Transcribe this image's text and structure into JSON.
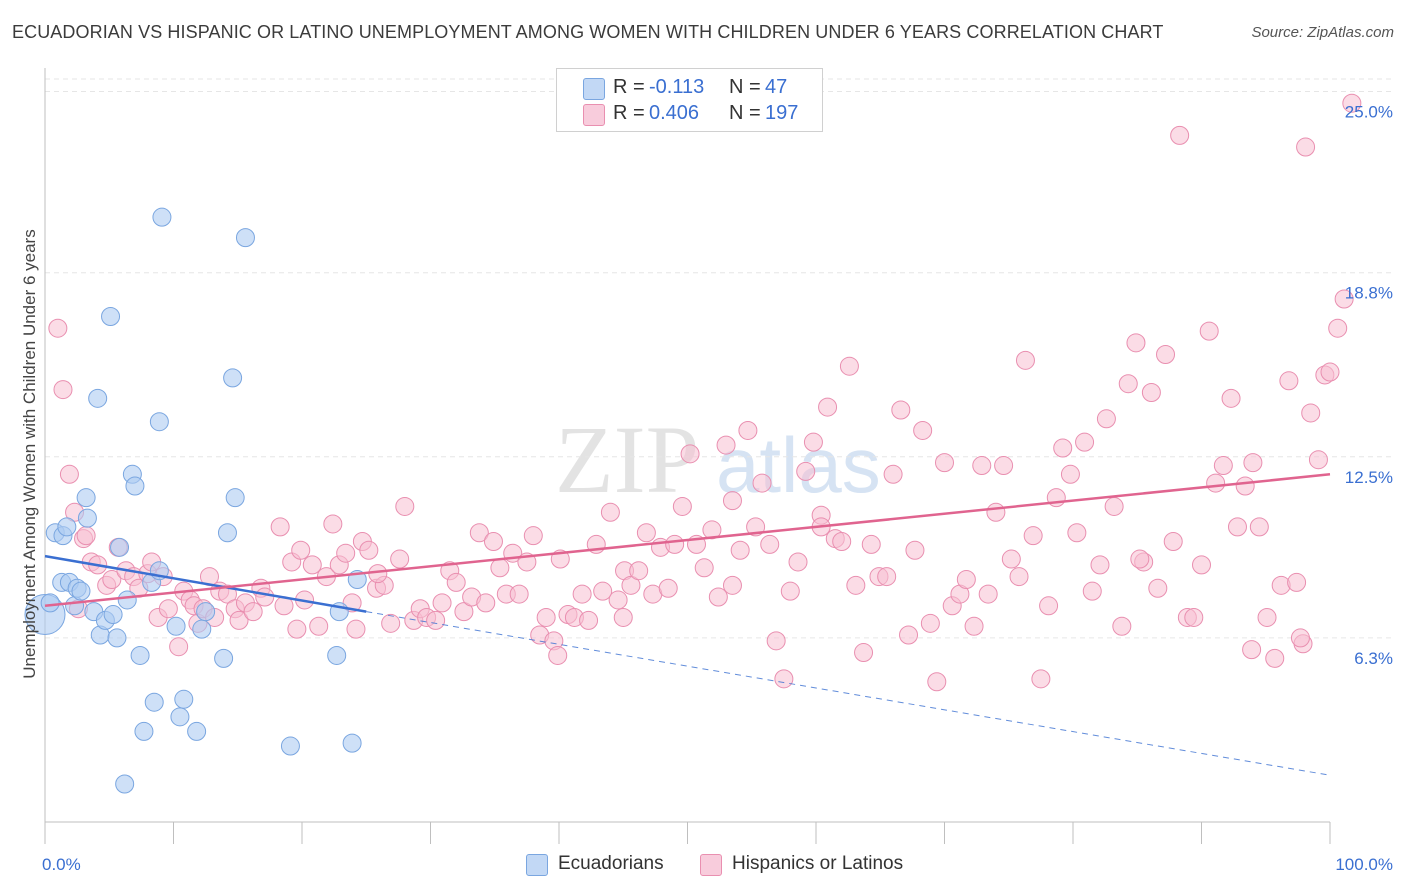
{
  "header": {
    "title": "ECUADORIAN VS HISPANIC OR LATINO UNEMPLOYMENT AMONG WOMEN WITH CHILDREN UNDER 6 YEARS CORRELATION CHART",
    "source": "Source: ZipAtlas.com"
  },
  "watermark": {
    "zip": "ZIP",
    "atlas": "atlas"
  },
  "legend": {
    "rows": [
      {
        "r_label": "R =",
        "r_value": "-0.113",
        "n_label": "N =",
        "n_value": "47"
      },
      {
        "r_label": "R =",
        "r_value": "0.406",
        "n_label": "N =",
        "n_value": "197"
      }
    ]
  },
  "bottom_legend": {
    "ecuadorians": "Ecuadorians",
    "hispanics": "Hispanics or Latinos"
  },
  "colors": {
    "ecuadorian_fill": "#aecbf2",
    "ecuadorian_stroke": "#7aa6e0",
    "ecuadorian_line": "#3a6fd1",
    "hispanic_fill": "#f7bfd2",
    "hispanic_stroke": "#e98fb0",
    "hispanic_line": "#e0648f",
    "tick_label": "#3a6fd1"
  },
  "chart_data": {
    "type": "scatter",
    "title": "ECUADORIAN VS HISPANIC OR LATINO UNEMPLOYMENT AMONG WOMEN WITH CHILDREN UNDER 6 YEARS CORRELATION CHART",
    "xlabel": "",
    "ylabel": "Unemployment Among Women with Children Under 6 years",
    "xlim": [
      0,
      100
    ],
    "ylim": [
      0,
      25.6
    ],
    "x_tick_labels": [
      "0.0%",
      "100.0%"
    ],
    "y_ticks": [
      6.3,
      12.5,
      18.8,
      25.0
    ],
    "y_tick_labels": [
      "6.3%",
      "12.5%",
      "18.8%",
      "25.0%"
    ],
    "grid": true,
    "legend_position": "top-center",
    "series": [
      {
        "name": "Ecuadorians",
        "r": -0.113,
        "n": 47,
        "trend": {
          "x": [
            0,
            25
          ],
          "y": [
            9.1,
            7.2
          ]
        },
        "trend_extended": {
          "x": [
            25,
            100
          ],
          "y": [
            7.2,
            1.6
          ]
        },
        "points": [
          [
            0.0,
            7.1,
            2
          ],
          [
            0.4,
            7.5,
            1
          ],
          [
            0.8,
            9.9,
            1
          ],
          [
            1.3,
            8.2,
            1
          ],
          [
            1.4,
            9.8,
            1
          ],
          [
            1.7,
            10.1,
            1
          ],
          [
            1.9,
            8.2,
            1
          ],
          [
            2.3,
            7.4,
            1
          ],
          [
            2.5,
            8.0,
            1
          ],
          [
            2.8,
            7.9,
            1
          ],
          [
            3.3,
            10.4,
            1
          ],
          [
            3.2,
            11.1,
            1
          ],
          [
            3.8,
            7.2,
            1
          ],
          [
            4.1,
            14.5,
            1
          ],
          [
            4.3,
            6.4,
            1
          ],
          [
            4.7,
            6.9,
            1
          ],
          [
            5.1,
            17.3,
            1
          ],
          [
            5.3,
            7.1,
            1
          ],
          [
            5.6,
            6.3,
            1
          ],
          [
            5.8,
            9.4,
            1
          ],
          [
            6.2,
            1.3,
            1
          ],
          [
            6.4,
            7.6,
            1
          ],
          [
            6.8,
            11.9,
            1
          ],
          [
            7.0,
            11.5,
            1
          ],
          [
            7.4,
            5.7,
            1
          ],
          [
            7.7,
            3.1,
            1
          ],
          [
            8.3,
            8.2,
            1
          ],
          [
            8.5,
            4.1,
            1
          ],
          [
            8.9,
            8.6,
            1
          ],
          [
            8.9,
            13.7,
            1
          ],
          [
            9.1,
            20.7,
            1
          ],
          [
            10.2,
            6.7,
            1
          ],
          [
            10.5,
            3.6,
            1
          ],
          [
            10.8,
            4.2,
            1
          ],
          [
            11.8,
            3.1,
            1
          ],
          [
            12.2,
            6.6,
            1
          ],
          [
            12.5,
            7.2,
            1
          ],
          [
            13.9,
            5.6,
            1
          ],
          [
            14.2,
            9.9,
            1
          ],
          [
            14.6,
            15.2,
            1
          ],
          [
            14.8,
            11.1,
            1
          ],
          [
            15.6,
            20.0,
            1
          ],
          [
            19.1,
            2.6,
            1
          ],
          [
            22.7,
            5.7,
            1
          ],
          [
            22.9,
            7.2,
            1
          ],
          [
            23.9,
            2.7,
            1
          ],
          [
            24.3,
            8.3,
            1
          ]
        ]
      },
      {
        "name": "Hispanics or Latinos",
        "r": 0.406,
        "n": 197,
        "trend": {
          "x": [
            0,
            100
          ],
          "y": [
            7.4,
            11.9
          ]
        },
        "points": [
          [
            1.0,
            16.9
          ],
          [
            1.4,
            14.8
          ],
          [
            1.9,
            11.9
          ],
          [
            2.3,
            10.6
          ],
          [
            2.6,
            7.3
          ],
          [
            3.0,
            9.7
          ],
          [
            3.2,
            9.8
          ],
          [
            3.6,
            8.9
          ],
          [
            4.1,
            8.8
          ],
          [
            4.8,
            8.1
          ],
          [
            5.2,
            8.3
          ],
          [
            5.7,
            9.4
          ],
          [
            6.3,
            8.6
          ],
          [
            6.9,
            8.4
          ],
          [
            7.3,
            8.0
          ],
          [
            8.0,
            8.5
          ],
          [
            8.3,
            8.9
          ],
          [
            8.8,
            7.0
          ],
          [
            9.2,
            8.4
          ],
          [
            9.6,
            7.3
          ],
          [
            10.4,
            6.0
          ],
          [
            10.8,
            7.9
          ],
          [
            11.3,
            7.6
          ],
          [
            11.6,
            7.4
          ],
          [
            11.9,
            6.8
          ],
          [
            12.3,
            7.3
          ],
          [
            12.8,
            8.4
          ],
          [
            13.2,
            7.0
          ],
          [
            13.6,
            7.9
          ],
          [
            14.2,
            7.8
          ],
          [
            14.8,
            7.3
          ],
          [
            15.1,
            6.9
          ],
          [
            15.6,
            7.5
          ],
          [
            16.2,
            7.2
          ],
          [
            16.8,
            8.0
          ],
          [
            17.1,
            7.7
          ],
          [
            18.3,
            10.1
          ],
          [
            18.6,
            7.4
          ],
          [
            19.2,
            8.9
          ],
          [
            19.6,
            6.6
          ],
          [
            20.2,
            7.6
          ],
          [
            20.8,
            8.8
          ],
          [
            21.3,
            6.7
          ],
          [
            21.9,
            8.4
          ],
          [
            22.4,
            10.2
          ],
          [
            22.9,
            8.8
          ],
          [
            23.4,
            9.2
          ],
          [
            23.9,
            7.5
          ],
          [
            24.2,
            6.6
          ],
          [
            24.7,
            9.6
          ],
          [
            25.2,
            9.3
          ],
          [
            25.8,
            8.0
          ],
          [
            26.4,
            8.1
          ],
          [
            26.9,
            6.8
          ],
          [
            27.6,
            9.0
          ],
          [
            28.0,
            10.8
          ],
          [
            28.7,
            6.9
          ],
          [
            29.2,
            7.3
          ],
          [
            29.7,
            7.0
          ],
          [
            30.4,
            6.9
          ],
          [
            30.9,
            7.5
          ],
          [
            31.5,
            8.6
          ],
          [
            32.0,
            8.2
          ],
          [
            32.6,
            7.2
          ],
          [
            33.2,
            7.7
          ],
          [
            33.8,
            9.9
          ],
          [
            34.3,
            7.5
          ],
          [
            34.9,
            9.6
          ],
          [
            35.4,
            8.7
          ],
          [
            35.9,
            7.8
          ],
          [
            36.4,
            9.2
          ],
          [
            36.9,
            7.8
          ],
          [
            37.5,
            8.9
          ],
          [
            38.0,
            9.8
          ],
          [
            38.5,
            6.4
          ],
          [
            39.0,
            7.0
          ],
          [
            39.6,
            6.2
          ],
          [
            40.1,
            9.0
          ],
          [
            40.7,
            7.1
          ],
          [
            41.2,
            7.0
          ],
          [
            41.8,
            7.8
          ],
          [
            42.3,
            6.9
          ],
          [
            42.9,
            9.5
          ],
          [
            43.4,
            7.9
          ],
          [
            44.0,
            10.6
          ],
          [
            44.6,
            7.6
          ],
          [
            45.1,
            8.6
          ],
          [
            45.6,
            8.1
          ],
          [
            46.2,
            8.6
          ],
          [
            46.8,
            9.9
          ],
          [
            47.3,
            7.8
          ],
          [
            47.9,
            9.4
          ],
          [
            48.5,
            8.0
          ],
          [
            49.0,
            9.5
          ],
          [
            49.6,
            10.8
          ],
          [
            50.2,
            12.6
          ],
          [
            50.7,
            9.5
          ],
          [
            51.3,
            8.7
          ],
          [
            51.9,
            10.0
          ],
          [
            52.4,
            7.7
          ],
          [
            53.0,
            12.9
          ],
          [
            53.5,
            11.0
          ],
          [
            54.1,
            9.3
          ],
          [
            54.7,
            13.4
          ],
          [
            55.3,
            10.1
          ],
          [
            55.8,
            11.6
          ],
          [
            56.4,
            9.5
          ],
          [
            56.9,
            6.2
          ],
          [
            57.5,
            4.9
          ],
          [
            58.0,
            7.9
          ],
          [
            58.6,
            8.9
          ],
          [
            59.2,
            12.0
          ],
          [
            59.8,
            13.0
          ],
          [
            60.4,
            10.5
          ],
          [
            60.9,
            14.2
          ],
          [
            61.5,
            9.7
          ],
          [
            62.0,
            9.6
          ],
          [
            62.6,
            15.6
          ],
          [
            63.1,
            8.1
          ],
          [
            63.7,
            5.8
          ],
          [
            64.3,
            9.5
          ],
          [
            64.9,
            8.4
          ],
          [
            65.5,
            8.4
          ],
          [
            66.0,
            11.9
          ],
          [
            66.6,
            14.1
          ],
          [
            67.2,
            6.4
          ],
          [
            67.7,
            9.3
          ],
          [
            68.3,
            13.4
          ],
          [
            68.9,
            6.8
          ],
          [
            69.4,
            4.8
          ],
          [
            70.0,
            12.3
          ],
          [
            70.6,
            7.4
          ],
          [
            71.2,
            7.8
          ],
          [
            71.7,
            8.3
          ],
          [
            72.3,
            6.7
          ],
          [
            72.9,
            12.2
          ],
          [
            73.4,
            7.8
          ],
          [
            74.0,
            10.6
          ],
          [
            74.6,
            12.2
          ],
          [
            75.2,
            9.0
          ],
          [
            75.8,
            8.4
          ],
          [
            76.3,
            15.8
          ],
          [
            76.9,
            9.8
          ],
          [
            77.5,
            4.9
          ],
          [
            78.1,
            7.4
          ],
          [
            78.7,
            11.1
          ],
          [
            79.2,
            12.8
          ],
          [
            79.8,
            11.9
          ],
          [
            80.3,
            9.9
          ],
          [
            80.9,
            13.0
          ],
          [
            81.5,
            7.9
          ],
          [
            82.1,
            8.8
          ],
          [
            82.6,
            13.8
          ],
          [
            83.2,
            10.8
          ],
          [
            83.8,
            6.7
          ],
          [
            84.3,
            15.0
          ],
          [
            84.9,
            16.4
          ],
          [
            85.5,
            8.9
          ],
          [
            86.1,
            14.7
          ],
          [
            86.6,
            8.0
          ],
          [
            87.2,
            16.0
          ],
          [
            87.8,
            9.6
          ],
          [
            88.3,
            23.5
          ],
          [
            88.9,
            7.0
          ],
          [
            89.4,
            7.0
          ],
          [
            90.0,
            8.8
          ],
          [
            90.6,
            16.8
          ],
          [
            91.1,
            11.6
          ],
          [
            91.7,
            12.2
          ],
          [
            92.3,
            14.5
          ],
          [
            92.8,
            10.1
          ],
          [
            93.4,
            11.5
          ],
          [
            94.0,
            12.3
          ],
          [
            94.5,
            10.1
          ],
          [
            95.1,
            7.0
          ],
          [
            95.7,
            5.6
          ],
          [
            96.2,
            8.1
          ],
          [
            96.8,
            15.1
          ],
          [
            97.4,
            8.2
          ],
          [
            97.9,
            6.1
          ],
          [
            98.5,
            14.0
          ],
          [
            99.1,
            12.4
          ],
          [
            99.6,
            15.3
          ],
          [
            100.0,
            15.4
          ],
          [
            100.6,
            16.9
          ],
          [
            101.1,
            17.9
          ],
          [
            101.7,
            24.6
          ],
          [
            93.9,
            5.9
          ],
          [
            98.1,
            23.1
          ],
          [
            97.7,
            6.3
          ],
          [
            60.4,
            10.1
          ],
          [
            85.2,
            9.0
          ],
          [
            53.5,
            8.1
          ],
          [
            45.0,
            7.0
          ],
          [
            39.9,
            5.7
          ],
          [
            25.9,
            8.5
          ],
          [
            19.9,
            9.3
          ]
        ]
      }
    ]
  }
}
